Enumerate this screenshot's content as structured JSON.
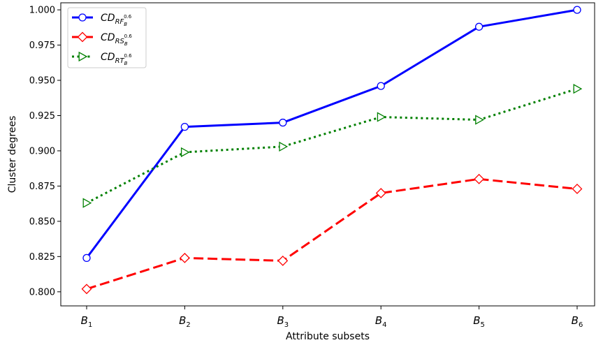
{
  "chart_data": {
    "type": "line",
    "title": "",
    "xlabel": "Attribute subsets",
    "ylabel": "Cluster degrees",
    "categories": [
      {
        "base": "B",
        "sub": "1"
      },
      {
        "base": "B",
        "sub": "2"
      },
      {
        "base": "B",
        "sub": "3"
      },
      {
        "base": "B",
        "sub": "4"
      },
      {
        "base": "B",
        "sub": "5"
      },
      {
        "base": "B",
        "sub": "6"
      }
    ],
    "ylim": [
      0.79,
      1.005
    ],
    "yticks": [
      0.8,
      0.825,
      0.85,
      0.875,
      0.9,
      0.925,
      0.95,
      0.975,
      1.0
    ],
    "ytick_labels": [
      "0.800",
      "0.825",
      "0.850",
      "0.875",
      "0.900",
      "0.925",
      "0.950",
      "0.975",
      "1.000"
    ],
    "grid": false,
    "legend_position": "top-left",
    "series": [
      {
        "name": "CD_RF_B^0.6",
        "label": {
          "base": "CD",
          "sub": "RF",
          "subsub": "B",
          "sup": "0.6"
        },
        "color": "#0000ff",
        "line_style": "solid",
        "marker": "circle",
        "values": [
          0.824,
          0.917,
          0.92,
          0.946,
          0.988,
          1.0
        ]
      },
      {
        "name": "CD_RS_B^0.6",
        "label": {
          "base": "CD",
          "sub": "RS",
          "subsub": "B",
          "sup": "0.6"
        },
        "color": "#ff0000",
        "line_style": "dashed",
        "marker": "diamond",
        "values": [
          0.802,
          0.824,
          0.822,
          0.87,
          0.88,
          0.873
        ]
      },
      {
        "name": "CD_RT_B^0.6",
        "label": {
          "base": "CD",
          "sub": "RT",
          "subsub": "B",
          "sup": "0.6"
        },
        "color": "#008000",
        "line_style": "dotted",
        "marker": "triangle-right",
        "values": [
          0.863,
          0.899,
          0.903,
          0.924,
          0.922,
          0.944
        ]
      }
    ]
  }
}
